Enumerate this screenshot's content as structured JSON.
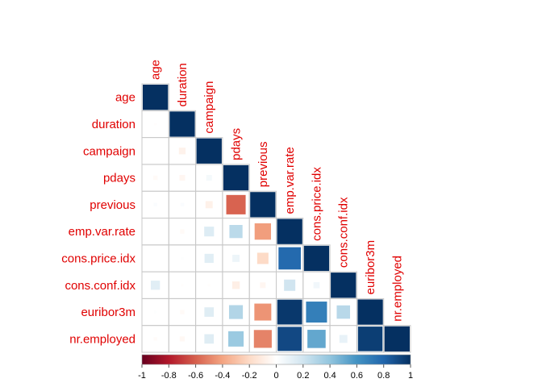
{
  "chart_data": {
    "type": "heatmap",
    "style": "lower-triangular correlation matrix, square glyphs sized by |r|",
    "variables": [
      "age",
      "duration",
      "campaign",
      "pdays",
      "previous",
      "emp.var.rate",
      "cons.price.idx",
      "cons.conf.idx",
      "euribor3m",
      "nr.employed"
    ],
    "matrix": [
      [
        1.0
      ],
      [
        -0.01,
        1.0
      ],
      [
        0.0,
        -0.07,
        1.0
      ],
      [
        -0.03,
        -0.05,
        0.05,
        1.0
      ],
      [
        0.02,
        0.02,
        -0.08,
        -0.59,
        1.0
      ],
      [
        0.0,
        -0.03,
        0.15,
        0.27,
        -0.42,
        1.0
      ],
      [
        0.0,
        0.01,
        0.13,
        0.08,
        -0.2,
        0.78,
        1.0
      ],
      [
        0.13,
        -0.01,
        -0.01,
        -0.09,
        -0.05,
        0.2,
        0.06,
        1.0
      ],
      [
        0.01,
        -0.03,
        0.14,
        0.3,
        -0.45,
        0.97,
        0.69,
        0.28,
        1.0
      ],
      [
        -0.02,
        -0.04,
        0.14,
        0.37,
        -0.5,
        0.91,
        0.52,
        0.1,
        0.95,
        1.0
      ]
    ],
    "colorbar": {
      "range": [
        -1,
        1
      ],
      "ticks": [
        "-1",
        "-0.8",
        "-0.6",
        "-0.4",
        "-0.2",
        "0",
        "0.2",
        "0.4",
        "0.6",
        "0.8",
        "1"
      ],
      "colors": {
        "negative": "#67001f",
        "mid": "#ffffff",
        "positive": "#053061"
      }
    },
    "label_color": "#e00000"
  }
}
